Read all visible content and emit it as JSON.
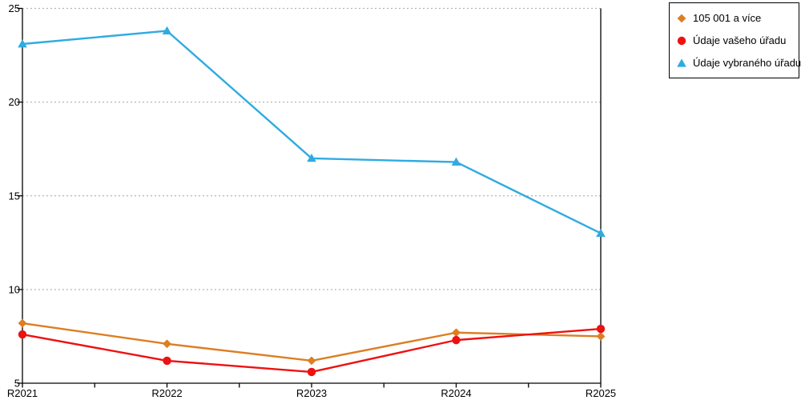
{
  "chart_data": {
    "type": "line",
    "title": "",
    "xlabel": "",
    "ylabel": "",
    "categories": [
      "R2021",
      "R2022",
      "R2023",
      "R2024",
      "R2025"
    ],
    "series": [
      {
        "name": "105 001 a více",
        "marker": "diamond",
        "color": "#dd7e23",
        "values": [
          8.2,
          7.1,
          6.2,
          7.7,
          7.5
        ]
      },
      {
        "name": "Údaje vašeho úřadu",
        "marker": "circle",
        "color": "#ee1111",
        "values": [
          7.6,
          6.2,
          5.6,
          7.3,
          7.9
        ]
      },
      {
        "name": "Údaje vybraného úřadu",
        "marker": "triangle",
        "color": "#2fabe1",
        "values": [
          23.1,
          23.8,
          17.0,
          16.8,
          13.0
        ]
      }
    ],
    "ylim": [
      5,
      25
    ],
    "yticks": [
      5,
      10,
      15,
      20,
      25
    ],
    "x_minor_ticks": true,
    "grid": "horizontal-dotted",
    "grid_color": "#b5b5b5",
    "axis_color": "#000000",
    "text_color": "#000000",
    "legend_position": "top-right"
  }
}
